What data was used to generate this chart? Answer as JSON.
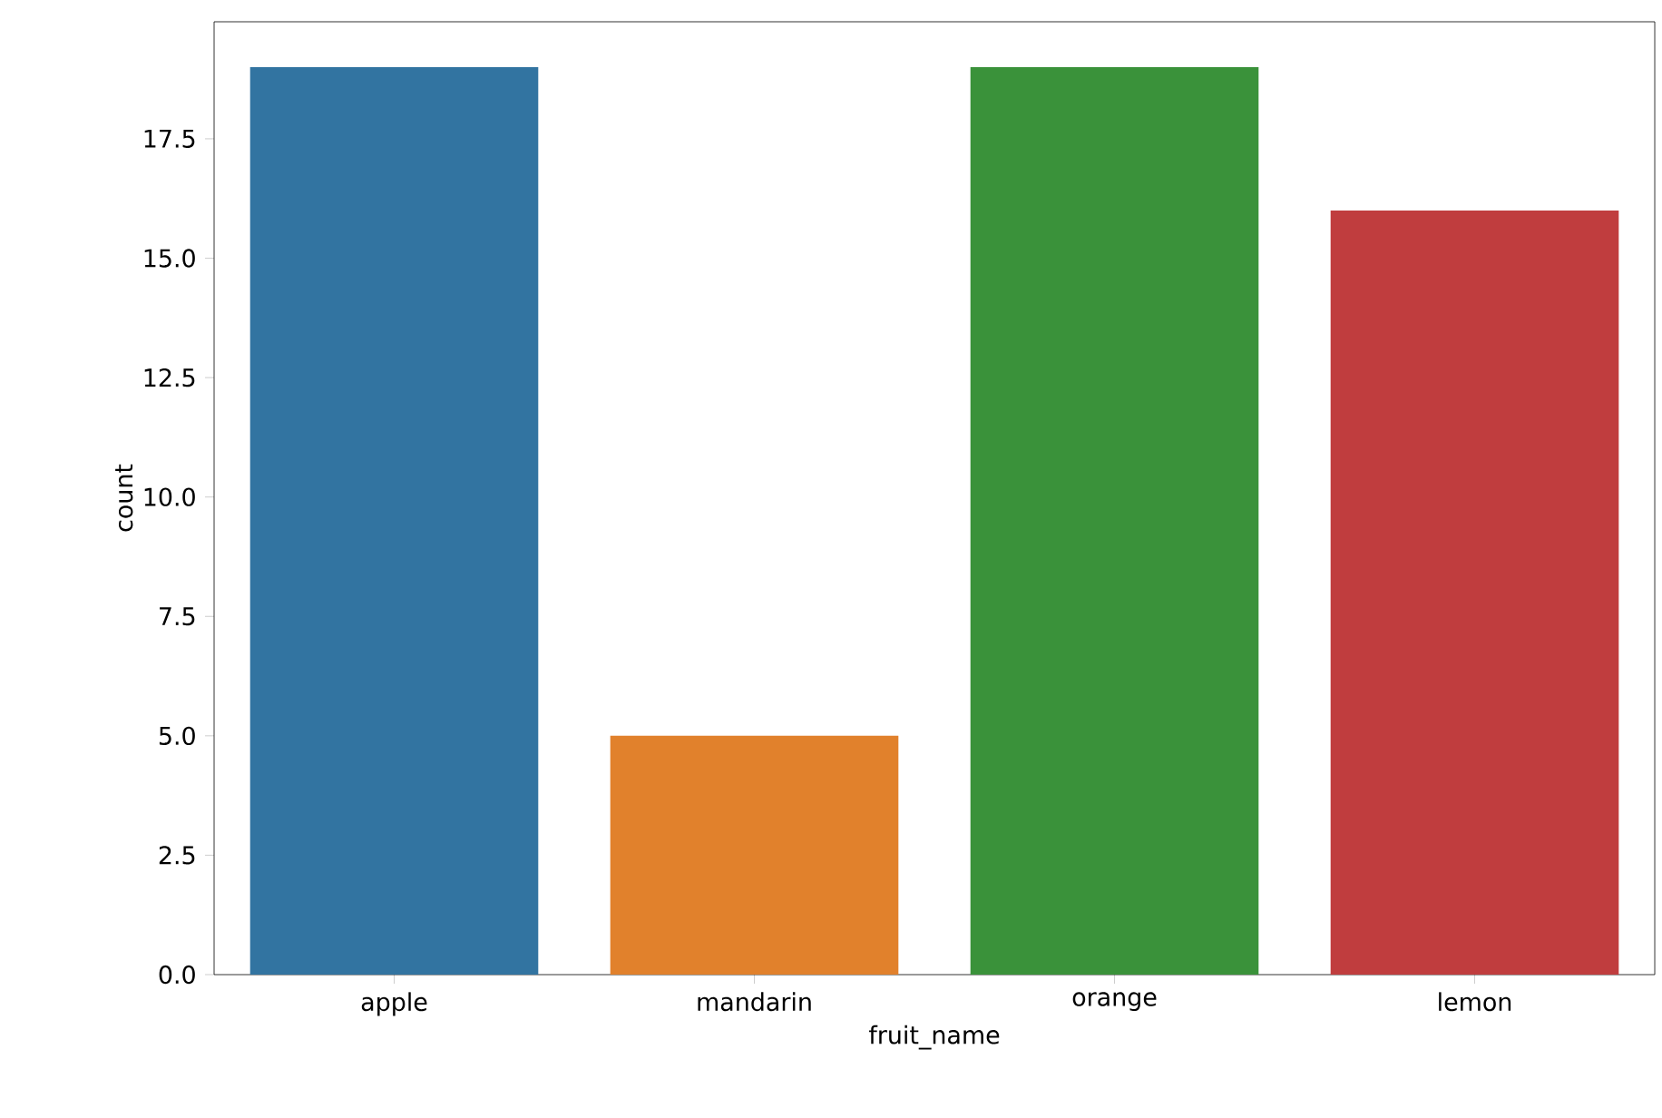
{
  "chart_data": {
    "type": "bar",
    "xlabel": "fruit_name",
    "ylabel": "count",
    "categories": [
      "apple",
      "mandarin",
      "orange",
      "lemon"
    ],
    "values": [
      19,
      5,
      19,
      16
    ],
    "colors": [
      "#3274a1",
      "#e1812c",
      "#3a923a",
      "#c03d3e"
    ],
    "ylim": [
      0,
      19.95
    ],
    "yticks": [
      {
        "value": 0,
        "label": "0.0"
      },
      2.5,
      {
        "value": 5,
        "label": "5.0"
      },
      7.5,
      {
        "value": 10,
        "label": "10.0"
      },
      12.5,
      {
        "value": 15,
        "label": "15.0"
      },
      17.5
    ],
    "grid": false
  }
}
